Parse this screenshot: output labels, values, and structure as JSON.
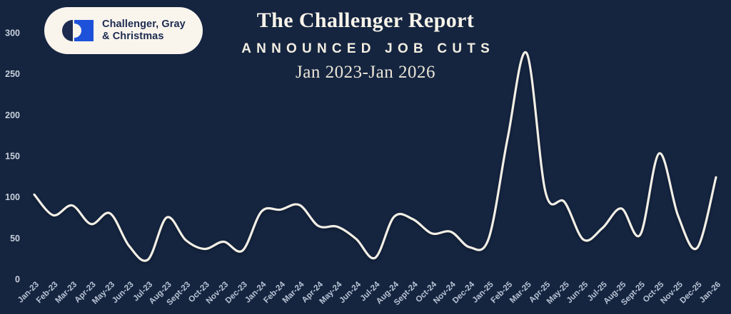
{
  "page": {
    "background_color": "#152540",
    "accent_cream": "#f2efe6"
  },
  "logo": {
    "line1": "Challenger, Gray",
    "line2": "& Christmas",
    "pill_color": "#f9f5ed",
    "mark_navy": "#1d2b50",
    "mark_blue": "#1e51d9"
  },
  "header": {
    "title": "The Challenger Report",
    "subtitle": "ANNOUNCED JOB CUTS",
    "date_range": "Jan 2023-Jan 2026"
  },
  "chart_data": {
    "type": "line",
    "title": "The Challenger Report",
    "subtitle": "ANNOUNCED JOB CUTS",
    "date_range": "Jan 2023-Jan 2026",
    "categories": [
      "Jan-23",
      "Feb-23",
      "Mar-23",
      "Apr-23",
      "May-23",
      "Jun-23",
      "Jul-23",
      "Aug-23",
      "Sept-23",
      "Oct-23",
      "Nov-23",
      "Dec-23",
      "Jan-24",
      "Feb-24",
      "Mar-24",
      "Apr-24",
      "May-24",
      "Jun-24",
      "Jul-24",
      "Aug-24",
      "Sept-24",
      "Oct-24",
      "Nov-24",
      "Dec-24",
      "Jan-25",
      "Feb-25",
      "Mar-25",
      "Apr-25",
      "May-25",
      "Jun-25",
      "Jul-25",
      "Aug-25",
      "Sept-25",
      "Oct-25",
      "Nov-25",
      "Dec-25",
      "Jan-26"
    ],
    "values": [
      102.9,
      77.8,
      89.7,
      67,
      80.1,
      40.7,
      23.7,
      75.2,
      47.5,
      36.8,
      45.5,
      34.8,
      82.3,
      84.6,
      90.3,
      64.8,
      63.8,
      48.8,
      25.9,
      75.9,
      72.8,
      55.6,
      57.7,
      38.8,
      49.8,
      172,
      275.2,
      105.4,
      93.8,
      48,
      62.1,
      86,
      54.1,
      153.1,
      77,
      38,
      124
    ],
    "xlabel": "",
    "ylabel": "",
    "ylim": [
      0,
      300
    ],
    "yticks": [
      0,
      50,
      100,
      150,
      200,
      250,
      300
    ],
    "grid": false,
    "legend": false,
    "line_color": "#f2efe6",
    "background": "#152540",
    "x_label_rotation_deg": -45
  }
}
